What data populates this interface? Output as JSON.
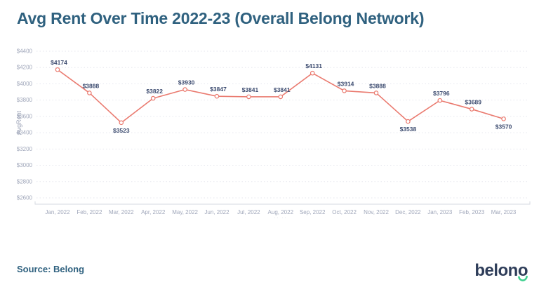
{
  "title": "Avg Rent Over Time 2022-23 (Overall Belong Network)",
  "source_label": "Source: Belong",
  "logo": {
    "prefix": "belon",
    "last_letter": "o"
  },
  "chart_data": {
    "type": "line",
    "title": "Avg Rent Over Time 2022-23 (Overall Belong Network)",
    "xlabel": "",
    "ylabel": "AvgRent",
    "categories": [
      "Jan, 2022",
      "Feb, 2022",
      "Mar, 2022",
      "Apr, 2022",
      "May, 2022",
      "Jun, 2022",
      "Jul, 2022",
      "Aug, 2022",
      "Sep, 2022",
      "Oct, 2022",
      "Nov, 2022",
      "Dec, 2022",
      "Jan, 2023",
      "Feb, 2023",
      "Mar, 2023"
    ],
    "series": [
      {
        "name": "AvgRent",
        "values": [
          4174,
          3888,
          3523,
          3822,
          3930,
          3847,
          3841,
          3841,
          4131,
          3914,
          3888,
          3538,
          3796,
          3689,
          3570
        ]
      }
    ],
    "point_labels": [
      "$4174",
      "$3888",
      "$3523",
      "$3822",
      "$3930",
      "$3847",
      "$3841",
      "$3841",
      "$4131",
      "$3914",
      "$3888",
      "$3538",
      "$3796",
      "$3689",
      "$3570"
    ],
    "labels_below": [
      2,
      11,
      14
    ],
    "ylim": [
      2600,
      4400
    ],
    "ytick_values": [
      4400,
      4200,
      4000,
      3800,
      3600,
      3400,
      3200,
      3000,
      2800,
      2600
    ],
    "ytick_labels": [
      "$4400",
      "$4200",
      "$4000",
      "$3800",
      "$3600",
      "$3400",
      "$3200",
      "$3000",
      "$2800",
      "$2600"
    ],
    "grid": "horizontal-dashed",
    "legend": "none",
    "axis_note": ".. ..",
    "colors": {
      "line": "#ea7a6f",
      "marker_fill": "#ffffff",
      "data_label": "#3d4c70",
      "tick_label": "#a0a7ba",
      "gridline": "#e5e6ee",
      "axis_line": "#d6d8e0",
      "title": "#2f617f",
      "logo_navy": "#2e3d59",
      "logo_green": "#3fd08f"
    }
  }
}
